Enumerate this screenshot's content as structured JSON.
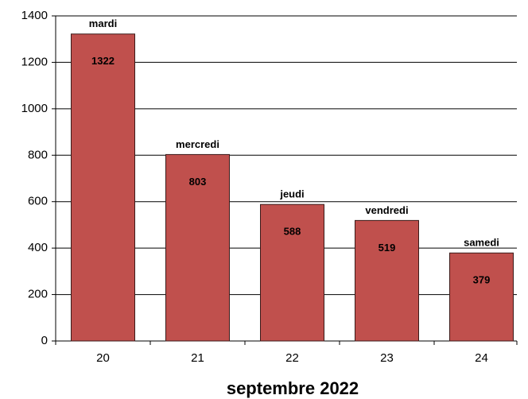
{
  "chart_data": {
    "type": "bar",
    "categories": [
      "20",
      "21",
      "22",
      "23",
      "24"
    ],
    "bar_labels": [
      "mardi",
      "mercredi",
      "jeudi",
      "vendredi",
      "samedi"
    ],
    "values": [
      1322,
      803,
      588,
      519,
      379
    ],
    "color": "#c0504d",
    "xlabel": "septembre 2022",
    "ylim": [
      0,
      1400
    ],
    "yticks": [
      0,
      200,
      400,
      600,
      800,
      1000,
      1200,
      1400
    ],
    "grid": true
  }
}
